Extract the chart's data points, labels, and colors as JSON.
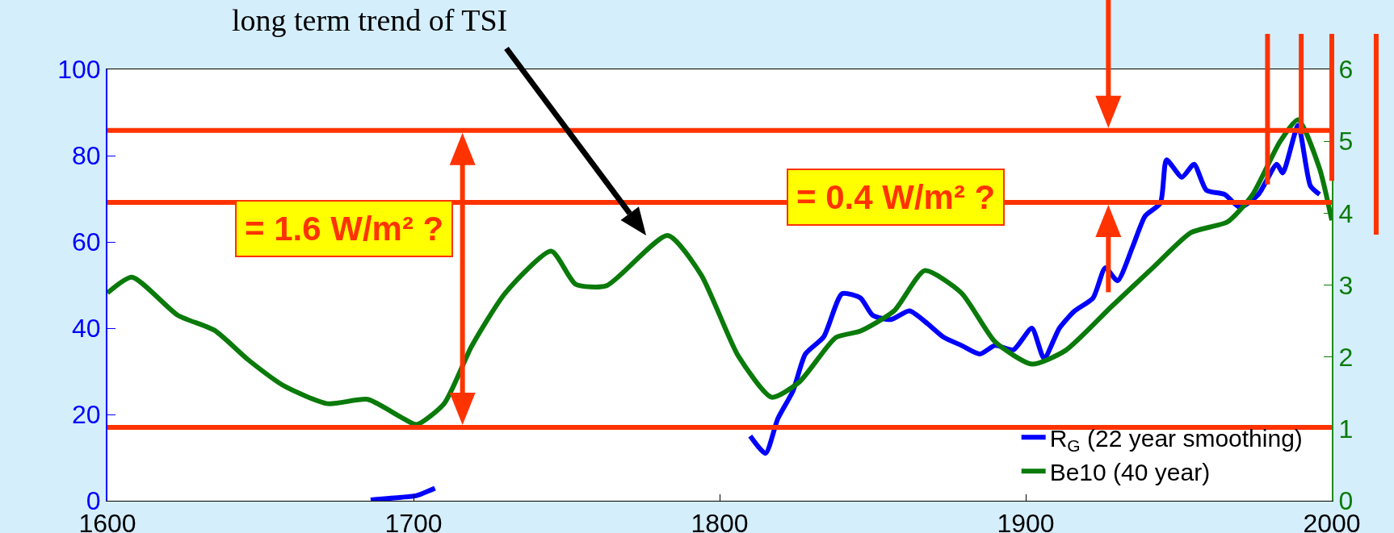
{
  "chart_data": {
    "type": "line",
    "annotations": [
      "long term trend of TSI",
      "= 1.6 W/m² ?",
      "= 0.4 W/m² ?"
    ],
    "series": [
      {
        "name": "R$_{G}$ (22 year smoothing)",
        "color": "#0000ff",
        "axis": "y",
        "x": [
          1686,
          1696,
          1701,
          1707,
          1750,
          1810,
          1815,
          1819,
          1824,
          1828,
          1834,
          1840,
          1846,
          1850,
          1856,
          1862,
          1868,
          1873,
          1879,
          1885,
          1890,
          1896,
          1902,
          1906,
          1911,
          1916,
          1922,
          1926,
          1930,
          1935,
          1939,
          1944,
          1946,
          1951,
          1955,
          1959,
          1965,
          1970,
          1976,
          1982,
          1984,
          1989,
          1993,
          1996
        ],
        "values": [
          0.2,
          0.8,
          1.2,
          2.9,
          null,
          15,
          11,
          19,
          25.5,
          34,
          38,
          48,
          47,
          43,
          42,
          44,
          41,
          38,
          36,
          34,
          36,
          35,
          40,
          33,
          40,
          44,
          47,
          54,
          51,
          59,
          66,
          69,
          79,
          75,
          78,
          72,
          71,
          68,
          71,
          78,
          76,
          87,
          73,
          71
        ]
      },
      {
        "name": "Be10 (40 year)",
        "color": "#0a7a0a",
        "axis": "y2",
        "x": [
          1600,
          1608,
          1623,
          1635,
          1646,
          1658,
          1672,
          1685,
          1696,
          1701,
          1710,
          1719,
          1730,
          1745,
          1753,
          1763,
          1783,
          1794,
          1806,
          1817,
          1826,
          1838,
          1846,
          1857,
          1867,
          1879,
          1890,
          1902,
          1913,
          1928,
          1942,
          1954,
          1966,
          1974,
          1983,
          1989,
          1996,
          2000
        ],
        "values": [
          2.89,
          3.11,
          2.58,
          2.37,
          1.96,
          1.59,
          1.35,
          1.41,
          1.16,
          1.06,
          1.35,
          2.15,
          2.89,
          3.47,
          3.01,
          2.99,
          3.69,
          3.14,
          2.02,
          1.44,
          1.65,
          2.27,
          2.36,
          2.64,
          3.2,
          2.89,
          2.21,
          1.9,
          2.09,
          2.7,
          3.26,
          3.73,
          3.88,
          4.25,
          4.99,
          5.3,
          4.62,
          3.9
        ]
      }
    ],
    "xlim": [
      1600,
      2000
    ],
    "xticks": [
      1600,
      1700,
      1800,
      1900,
      2000
    ],
    "ylim": [
      0,
      100
    ],
    "yticks": [
      0,
      20,
      40,
      60,
      80,
      100
    ],
    "y2lim": [
      0,
      6
    ],
    "y2ticks": [
      0,
      1,
      2,
      3,
      4,
      5,
      6
    ],
    "ref_lines": [
      {
        "axis": "y2",
        "value": 5.15,
        "color": "#ff3300"
      },
      {
        "axis": "y2",
        "value": 4.15,
        "color": "#ff3300"
      },
      {
        "axis": "y2",
        "value": 1.02,
        "color": "#ff3300"
      }
    ],
    "legend": "bottom right",
    "grid": false,
    "marker": "none",
    "line_style": "solid"
  }
}
